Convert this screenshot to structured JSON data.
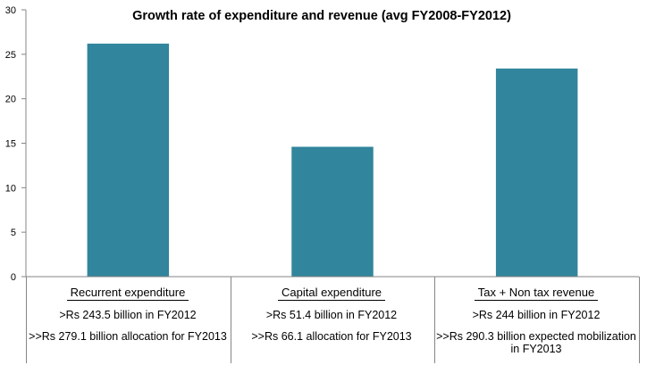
{
  "chart_data": {
    "type": "bar",
    "title": "Growth rate of expenditure and revenue (avg FY2008-FY2012)",
    "categories": [
      "Recurrent  expenditure",
      "Capital expenditure",
      "Tax + Non tax revenue"
    ],
    "values": [
      26.2,
      14.6,
      23.4
    ],
    "ylim": [
      0,
      30
    ],
    "yticks": [
      0,
      5,
      10,
      15,
      20,
      25,
      30
    ],
    "xlabel": "",
    "ylabel": "",
    "bar_color": "#31859c",
    "grid": false,
    "annotations": [
      {
        "line1": ">Rs 243.5 billion in FY2012",
        "line2": ">>Rs 279.1 billion allocation for FY2013"
      },
      {
        "line1": ">Rs 51.4 billion in FY2012",
        "line2": ">>Rs 66.1 allocation for FY2013"
      },
      {
        "line1": ">Rs 244 billion in FY2012",
        "line2": ">>Rs 290.3 billion expected mobilization in FY2013"
      }
    ]
  }
}
